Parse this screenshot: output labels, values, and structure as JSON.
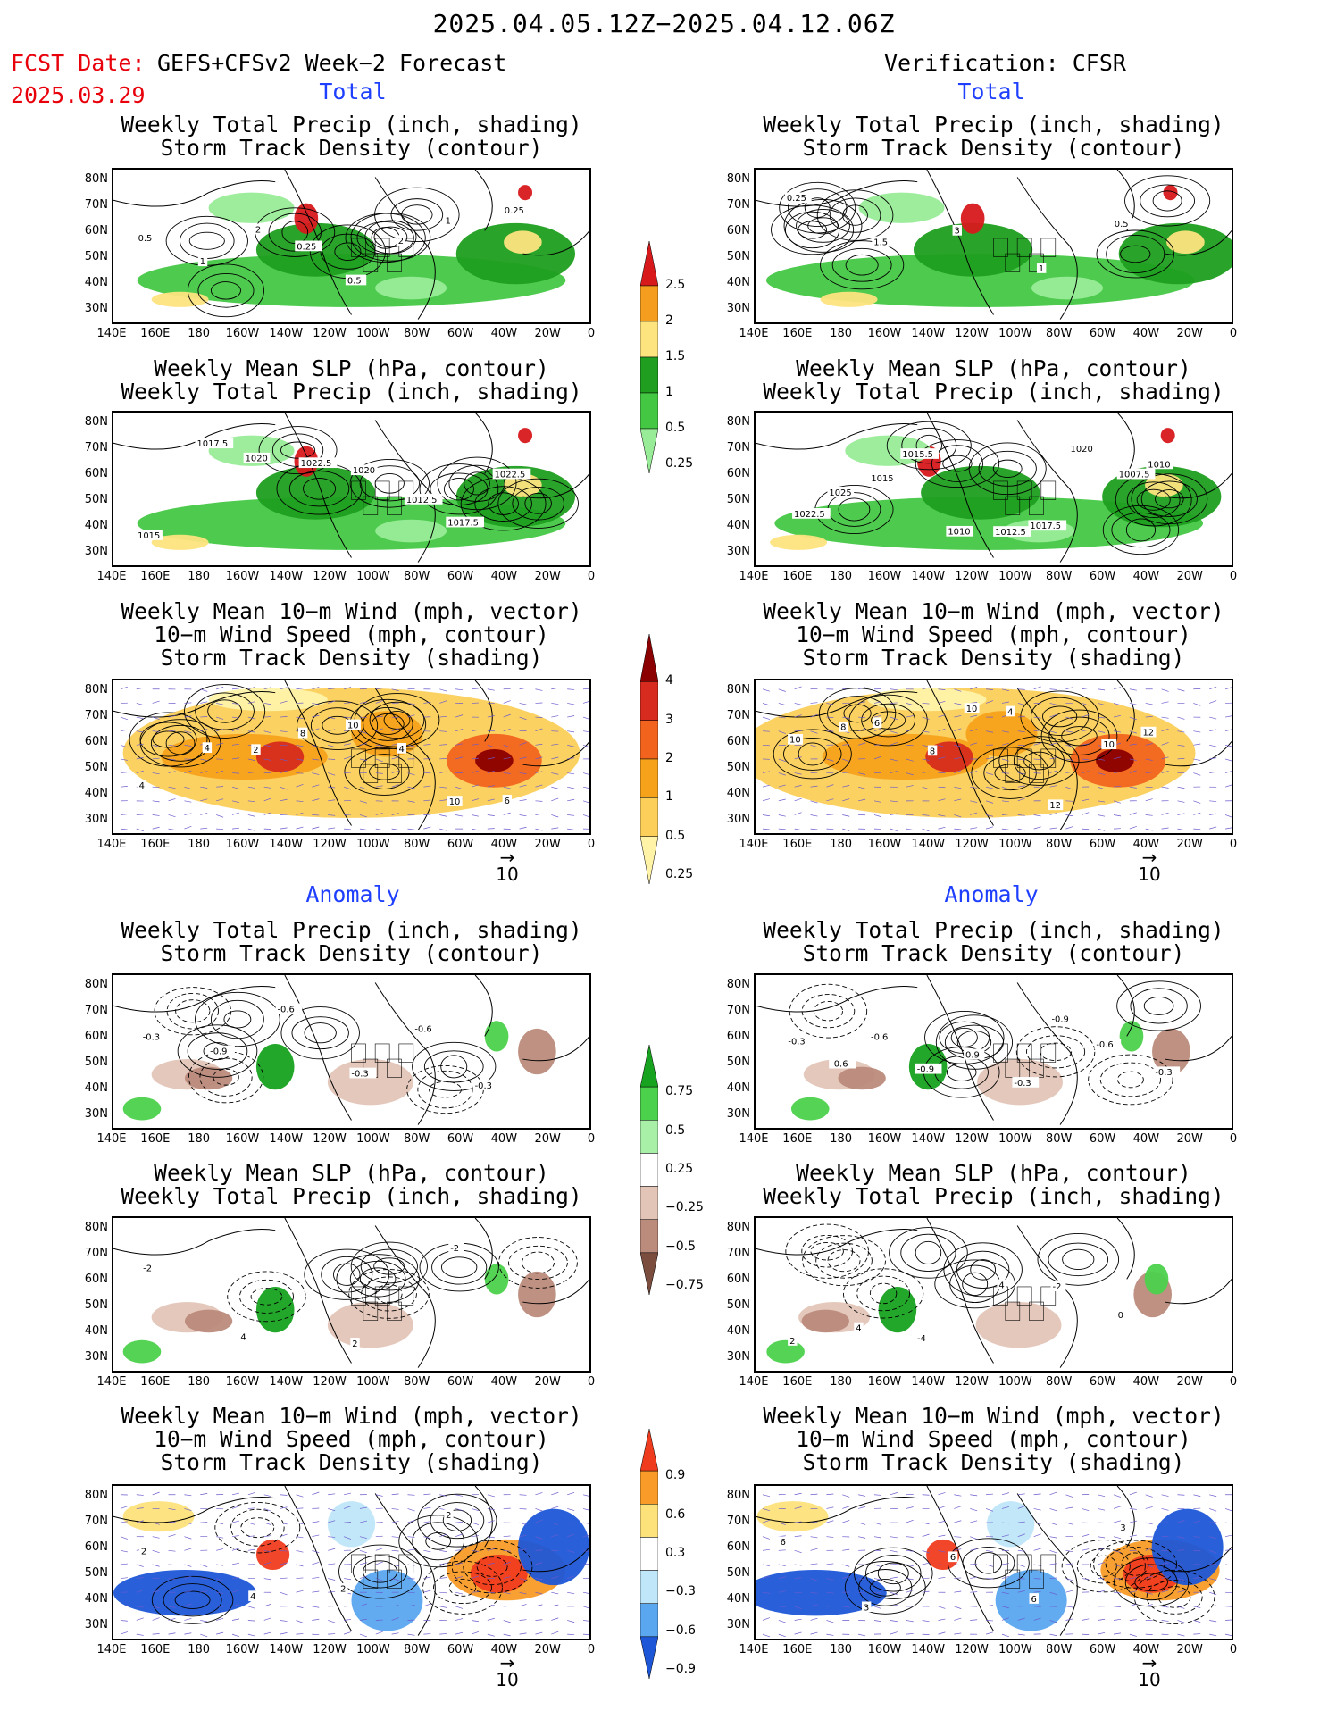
{
  "header": {
    "title": "2025.04.05.12Z−2025.04.12.06Z",
    "fcst_date_label": "FCST Date:",
    "fcst_date_value": "2025.03.29",
    "left_subtitle": "GEFS+CFSv2 Week−2 Forecast",
    "right_subtitle": "Verification: CFSR"
  },
  "sections": {
    "total_label": "Total",
    "anomaly_label": "Anomaly"
  },
  "panel_titles": {
    "precip_storm": [
      "Weekly Total Precip (inch, shading)",
      "Storm Track Density (contour)"
    ],
    "slp_precip": [
      "Weekly Mean SLP (hPa, contour)",
      "Weekly Total Precip (inch, shading)"
    ],
    "wind": [
      "Weekly Mean 10−m Wind (mph, vector)",
      "10−m Wind Speed (mph, contour)",
      "Storm Track Density (shading)"
    ]
  },
  "axes": {
    "lat_ticks": [
      "80N",
      "70N",
      "60N",
      "50N",
      "40N",
      "30N"
    ],
    "lon_ticks": [
      "140E",
      "160E",
      "180",
      "160W",
      "140W",
      "120W",
      "100W",
      "80W",
      "60W",
      "40W",
      "20W",
      "0"
    ]
  },
  "vector_reference": "10",
  "colorbars": {
    "precip_total": {
      "labels": [
        "2.5",
        "2",
        "1.5",
        "1",
        "0.5",
        "0.25"
      ],
      "colors": [
        "#d7191c",
        "#f49d1e",
        "#fde47f",
        "#1f9e1f",
        "#44c844",
        "#98ec98"
      ]
    },
    "storm_total": {
      "labels": [
        "4",
        "3",
        "2",
        "1",
        "0.5",
        "0.25"
      ],
      "colors": [
        "#8b0000",
        "#d62b1e",
        "#f2641e",
        "#f7a21b",
        "#fbcf5a",
        "#fff3a8"
      ]
    },
    "precip_anom": {
      "labels": [
        "0.75",
        "0.5",
        "0.25",
        "−0.25",
        "−0.5",
        "−0.75"
      ],
      "colors": [
        "#17a21f",
        "#4cd14c",
        "#a8efa8",
        "#ffffff",
        "#e3c5b8",
        "#bb8b7b",
        "#7a4d3e"
      ]
    },
    "storm_anom": {
      "labels": [
        "0.9",
        "0.6",
        "0.3",
        "−0.3",
        "−0.6",
        "−0.9"
      ],
      "colors": [
        "#f03c1e",
        "#f99b28",
        "#fde17a",
        "#ffffff",
        "#bfe6f9",
        "#5aa7f0",
        "#1d57d8"
      ]
    }
  },
  "contour_labels": {
    "fcst_total_precip": [
      "0.5",
      "1",
      "2",
      "0.25",
      "0.5",
      "2",
      "1",
      "0.25"
    ],
    "verif_total_precip": [
      "0.25",
      "1.5",
      "3",
      "1",
      "0.5"
    ],
    "fcst_slp": [
      "1015",
      "1017.5",
      "1020",
      "1022.5",
      "1020",
      "1012.5",
      "1017.5",
      "1022.5"
    ],
    "verif_slp": [
      "1022.5",
      "1025",
      "1015",
      "1015.5",
      "1010",
      "1012.5",
      "1017.5",
      "1020",
      "1007.5",
      "1010"
    ],
    "fcst_wind": [
      "4",
      "4",
      "2",
      "8",
      "10",
      "4",
      "10",
      "6"
    ],
    "verif_wind": [
      "10",
      "8",
      "6",
      "8",
      "10",
      "4",
      "12",
      "10",
      "12"
    ],
    "fcst_precip_anom": [
      "-0.3",
      "-0.9",
      "-0.6",
      "-0.3",
      "-0.6",
      "-0.3"
    ],
    "verif_precip_anom": [
      "-0.3",
      "-0.6",
      "-0.6",
      "-0.9",
      "0.9",
      "-0.3",
      "-0.9",
      "-0.6",
      "-0.3"
    ],
    "fcst_slp_anom": [
      "-2",
      "4",
      "2",
      "-2"
    ],
    "verif_slp_anom": [
      "2",
      "4",
      "-4",
      "4",
      "-2",
      "0"
    ],
    "fcst_wind_anom": [
      "2",
      "4",
      "2",
      "2"
    ],
    "verif_wind_anom": [
      "6",
      "3",
      "6",
      "6",
      "3"
    ]
  }
}
